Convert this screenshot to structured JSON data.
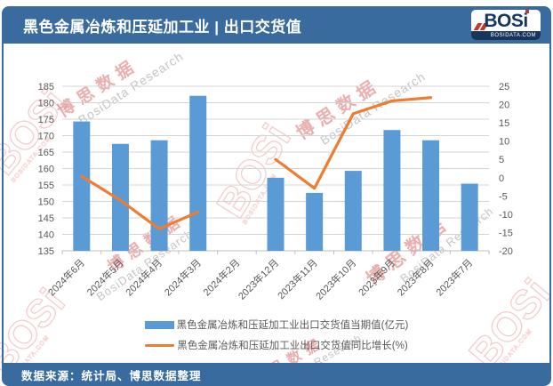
{
  "header": {
    "title": "黑色金属冶炼和压延加工业 | 出口交货值"
  },
  "logo": {
    "name": "BOSi",
    "domain": "BOSIDATA.COM"
  },
  "watermark": {
    "cn": "博思数据",
    "en": "BosiData Research",
    "logo": "BOSi",
    "logo_strip": "BOSIDATA.COM"
  },
  "footer": {
    "source": "数据来源：统计局、博思数据整理"
  },
  "chart_data": {
    "type": "bar",
    "categories": [
      "2024年6月",
      "2024年5月",
      "2024年4月",
      "2024年3月",
      "2024年2月",
      "2023年12月",
      "2023年11月",
      "2023年10月",
      "2023年9月",
      "2023年8月",
      "2023年7月"
    ],
    "series": [
      {
        "name": "黑色金属冶炼和压延加工业出口交货值当期值(亿元)",
        "type": "bar",
        "axis": "left",
        "color": "#5b9bd5",
        "values": [
          174.3,
          167.5,
          168.6,
          182.1,
          null,
          157.2,
          152.6,
          159.3,
          171.7,
          168.6,
          155.4
        ]
      },
      {
        "name": "黑色金属冶炼和压延加工业出口交货值同比增长(%)",
        "type": "line",
        "axis": "right",
        "color": "#ed7d31",
        "values": [
          0.4,
          -6.2,
          -14.0,
          -9.4,
          null,
          5.0,
          -2.9,
          17.5,
          21.0,
          21.9,
          null
        ]
      }
    ],
    "left_axis": {
      "min": 135,
      "max": 185,
      "step": 5
    },
    "right_axis": {
      "min": -20,
      "max": 25,
      "step": 5
    },
    "grid": true,
    "legend_position": "bottom"
  }
}
